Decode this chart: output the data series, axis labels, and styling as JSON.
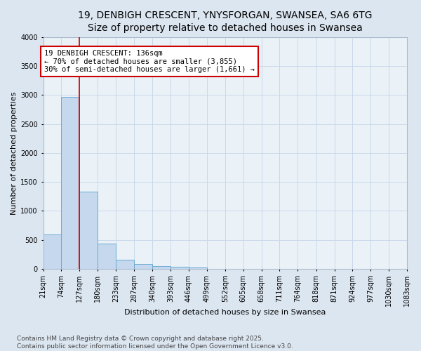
{
  "title_line1": "19, DENBIGH CRESCENT, YNYSFORGAN, SWANSEA, SA6 6TG",
  "title_line2": "Size of property relative to detached houses in Swansea",
  "xlabel": "Distribution of detached houses by size in Swansea",
  "ylabel": "Number of detached properties",
  "bin_edges": [
    21,
    74,
    127,
    180,
    233,
    287,
    340,
    393,
    446,
    499,
    552,
    605,
    658,
    711,
    764,
    818,
    871,
    924,
    977,
    1030,
    1083
  ],
  "bin_labels": [
    "21sqm",
    "74sqm",
    "127sqm",
    "180sqm",
    "233sqm",
    "287sqm",
    "340sqm",
    "393sqm",
    "446sqm",
    "499sqm",
    "552sqm",
    "605sqm",
    "658sqm",
    "711sqm",
    "764sqm",
    "818sqm",
    "871sqm",
    "924sqm",
    "977sqm",
    "1030sqm",
    "1083sqm"
  ],
  "values": [
    590,
    2970,
    1335,
    430,
    160,
    80,
    50,
    38,
    20,
    0,
    0,
    0,
    0,
    0,
    0,
    0,
    0,
    0,
    0,
    0
  ],
  "bar_color": "#c5d8ed",
  "bar_edge_color": "#6aaad4",
  "grid_color": "#c8d8ea",
  "background_color": "#dce6f1",
  "plot_background": "#eaf2f8",
  "vline_x": 127,
  "vline_color": "#cc0000",
  "annotation_title": "19 DENBIGH CRESCENT: 136sqm",
  "annotation_line2": "← 70% of detached houses are smaller (3,855)",
  "annotation_line3": "30% of semi-detached houses are larger (1,661) →",
  "annotation_box_edgecolor": "#cc0000",
  "ylim": [
    0,
    4000
  ],
  "yticks": [
    0,
    500,
    1000,
    1500,
    2000,
    2500,
    3000,
    3500,
    4000
  ],
  "footer_line1": "Contains HM Land Registry data © Crown copyright and database right 2025.",
  "footer_line2": "Contains public sector information licensed under the Open Government Licence v3.0.",
  "title_fontsize": 10,
  "axis_label_fontsize": 8,
  "tick_fontsize": 7,
  "annotation_fontsize": 7.5,
  "footer_fontsize": 6.5
}
